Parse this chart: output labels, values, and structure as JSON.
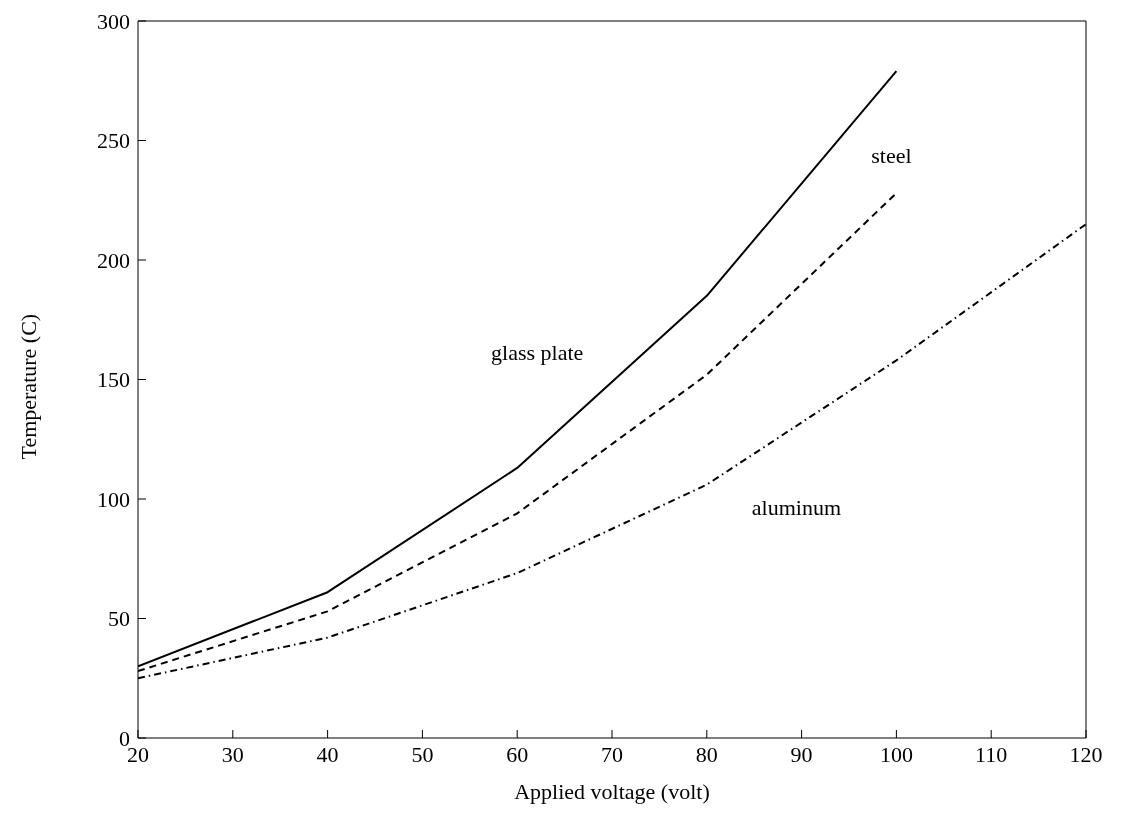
{
  "chart_data": {
    "type": "line",
    "xlabel": "Applied voltage (volt)",
    "ylabel": "Temperature (C)",
    "xlim": [
      20,
      120
    ],
    "xticks": [
      20,
      30,
      40,
      50,
      60,
      70,
      80,
      90,
      100,
      110,
      120
    ],
    "ylim": [
      0,
      300
    ],
    "yticks": [
      0,
      50,
      100,
      150,
      200,
      250,
      300
    ],
    "grid": false,
    "legend": false,
    "marker": "none",
    "series": [
      {
        "name": "glass plate",
        "color": "#000000",
        "line_style": "solid",
        "x": [
          20,
          40,
          60,
          80,
          100
        ],
        "values": [
          30,
          61,
          113,
          185,
          279
        ]
      },
      {
        "name": "steel",
        "color": "#000000",
        "line_style": "dashed",
        "x": [
          20,
          40,
          60,
          80,
          100
        ],
        "values": [
          28,
          53,
          94,
          152,
          228
        ]
      },
      {
        "name": "aluminum",
        "color": "#000000",
        "line_style": "dotted",
        "x": [
          20,
          40,
          60,
          80,
          100,
          120
        ],
        "values": [
          25,
          42,
          69,
          106,
          158,
          215
        ]
      }
    ]
  }
}
